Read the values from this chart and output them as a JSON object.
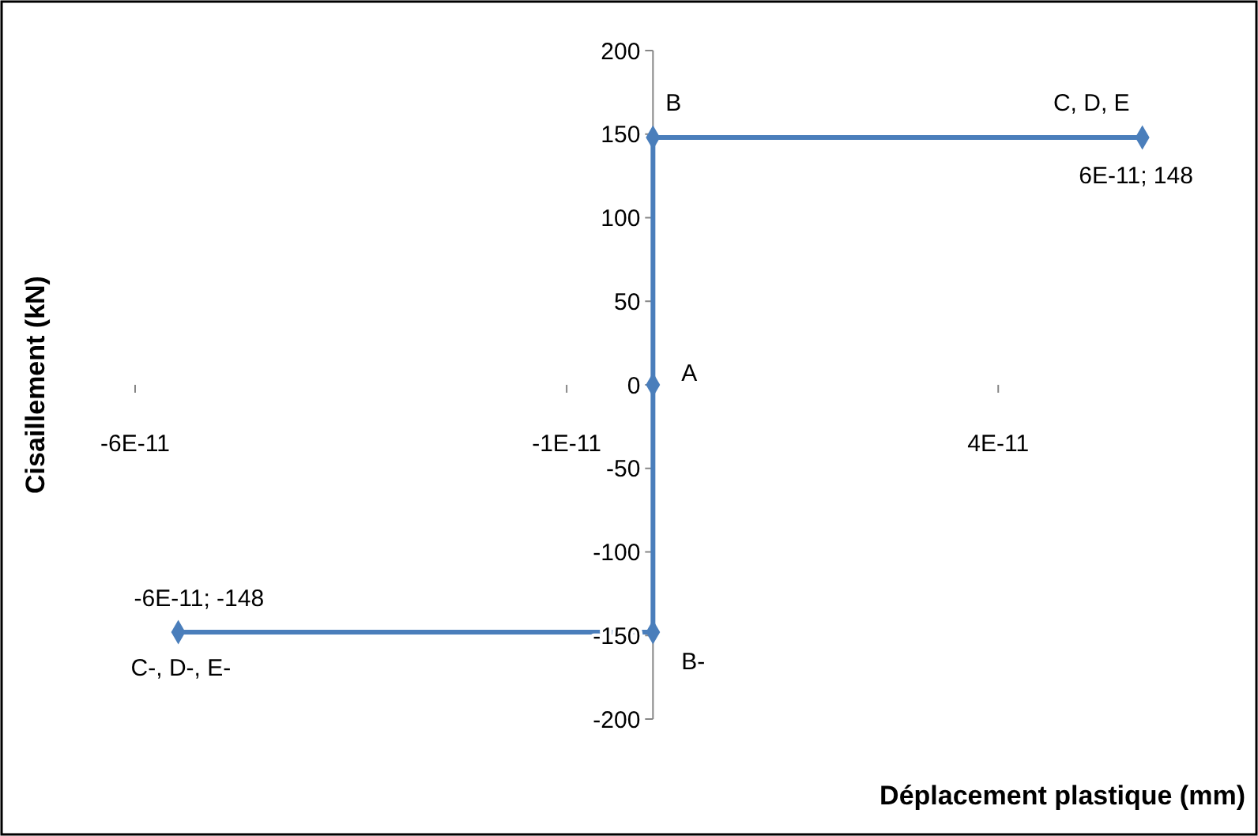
{
  "chart_data": {
    "type": "line",
    "xlabel": "Déplacement plastique (mm)",
    "ylabel": "Cisaillement (kN)",
    "x": [
      -5.5e-11,
      0,
      0,
      0,
      5.67e-11
    ],
    "series": [
      {
        "color": "#4a7ebb",
        "values": [
          -148,
          -148,
          0,
          148,
          148
        ]
      }
    ],
    "marker": "diamond",
    "line_style": "solid",
    "grid": false,
    "xlim": [
      -6.65e-11,
      6.9e-11
    ],
    "ylim": [
      -200,
      200
    ],
    "xticks": [
      {
        "value": -6e-11,
        "label": "-6E-11"
      },
      {
        "value": -1e-11,
        "label": "-1E-11"
      },
      {
        "value": 4e-11,
        "label": "4E-11"
      }
    ],
    "yticks": [
      -200,
      -150,
      -100,
      -50,
      0,
      50,
      100,
      150,
      200
    ],
    "annotations": [
      {
        "text": "B",
        "x": 0,
        "y": 148
      },
      {
        "text": "A",
        "x": 0,
        "y": 0
      },
      {
        "text": "B-",
        "x": 0,
        "y": -148
      },
      {
        "text": "C, D, E",
        "x": 5.67e-11,
        "y": 148
      },
      {
        "text": "6E-11; 148",
        "x": 5.67e-11,
        "y": 148
      },
      {
        "text": "-6E-11; -148",
        "x": -5.5e-11,
        "y": -148
      },
      {
        "text": "C-, D-, E-",
        "x": -5.5e-11,
        "y": -148
      }
    ]
  }
}
